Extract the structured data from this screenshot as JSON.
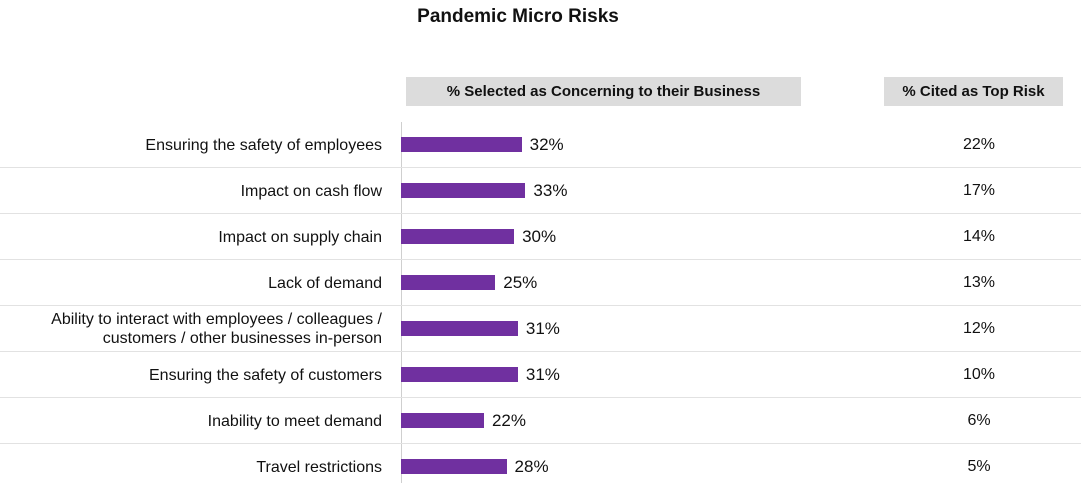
{
  "chart_data": {
    "type": "bar",
    "orientation": "horizontal",
    "title": "Pandemic Micro Risks",
    "bar_header": "% Selected as Concerning to their Business",
    "secondary_header": "% Cited as Top Risk",
    "bar_color": "#7030a0",
    "categories": [
      "Ensuring the safety of employees",
      "Impact on cash flow",
      "Impact on supply chain",
      "Lack of demand",
      "Ability to interact with employees / colleagues / customers / other businesses in-person",
      "Ensuring the safety of customers",
      "Inability to meet demand",
      "Travel restrictions"
    ],
    "series": [
      {
        "name": "% Selected as Concerning to their Business",
        "values": [
          32,
          33,
          30,
          25,
          31,
          31,
          22,
          28
        ]
      },
      {
        "name": "% Cited as Top Risk",
        "values": [
          22,
          17,
          14,
          13,
          12,
          10,
          6,
          5
        ]
      }
    ],
    "value_labels": [
      "32%",
      "33%",
      "30%",
      "25%",
      "31%",
      "31%",
      "22%",
      "28%"
    ],
    "top_risk_labels": [
      "22%",
      "17%",
      "14%",
      "13%",
      "12%",
      "10%",
      "6%",
      "5%"
    ],
    "xlim": [
      0,
      100
    ]
  }
}
